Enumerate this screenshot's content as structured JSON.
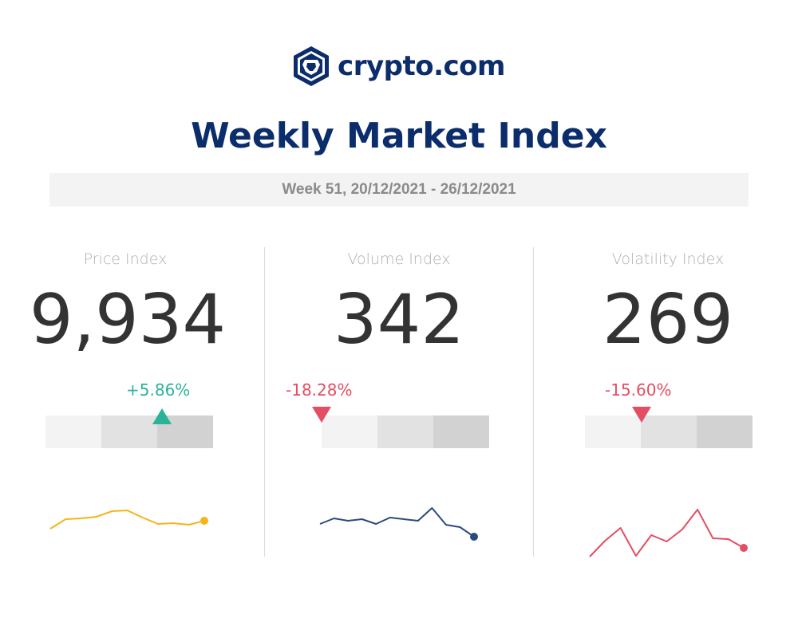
{
  "brand": {
    "name": "crypto.com",
    "icon": "crypto-com-lion-shield-icon"
  },
  "title": "Weekly Market Index",
  "week": "Week 51, 20/12/2021 - 26/12/2021",
  "colors": {
    "navy": "#0b2d6b",
    "positive": "#2bb39a",
    "negative": "#e44d64",
    "price_line": "#f4b41a",
    "volume_line": "#2a4a7f",
    "volatility_line": "#e44d64"
  },
  "indices": [
    {
      "id": "price",
      "label": "Price Index",
      "value": "9,934",
      "change": "+5.86%",
      "direction": "up",
      "gauge_level": 0.69,
      "spark": [
        2,
        14,
        15,
        17,
        24,
        25,
        16,
        8,
        9,
        7,
        12
      ]
    },
    {
      "id": "volume",
      "label": "Volume Index",
      "value": "342",
      "change": "-18.28%",
      "direction": "down",
      "gauge_level": 0.0,
      "spark": [
        21,
        28,
        25,
        27,
        21,
        29,
        27,
        25,
        41,
        20,
        17,
        5
      ]
    },
    {
      "id": "volatility",
      "label": "Volatility Index",
      "value": "269",
      "change": "-15.60%",
      "direction": "down",
      "gauge_level": 0.33,
      "spark": [
        4,
        24,
        40,
        5,
        31,
        23,
        38,
        63,
        27,
        26,
        15
      ]
    }
  ]
}
